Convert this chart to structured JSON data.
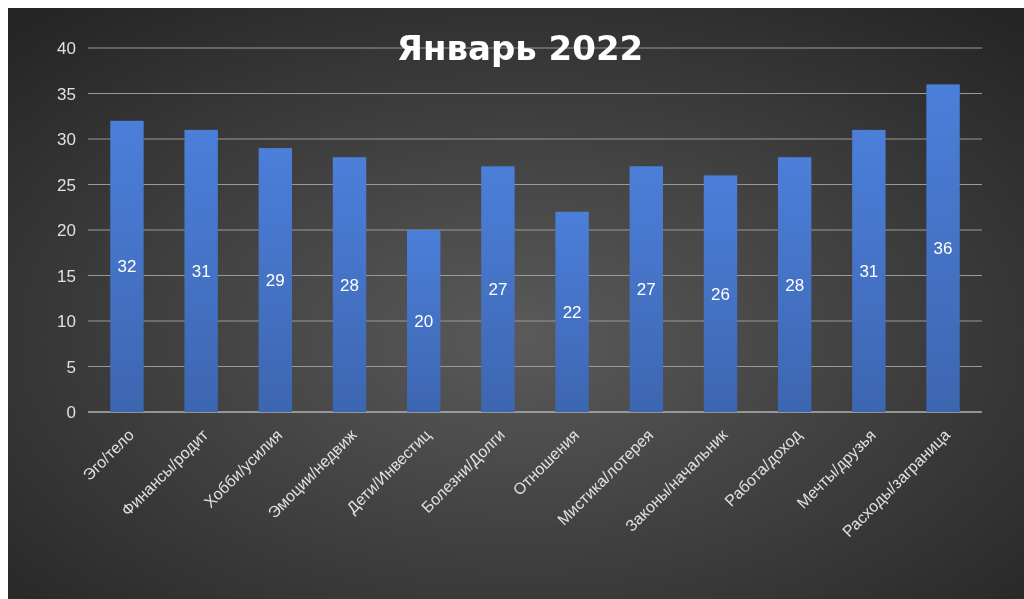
{
  "chart_data": {
    "type": "bar",
    "title": "Январь 2022",
    "categories": [
      "Эго/тело",
      "Финансы/родит",
      "Хобби/усилия",
      "Эмоции/недвиж",
      "Дети/Инвестиц",
      "Болезни/Долги",
      "Отношения",
      "Мистика/лотерея",
      "Законы/начальник",
      "Работа/доход",
      "Мечты/друзья",
      "Расходы/заграница"
    ],
    "values": [
      32,
      31,
      29,
      28,
      20,
      27,
      22,
      27,
      26,
      28,
      31,
      36
    ],
    "color": "#4472c4",
    "ylim": [
      0,
      40
    ],
    "yticks": [
      0,
      5,
      10,
      15,
      20,
      25,
      30,
      35,
      40
    ],
    "grid": "y",
    "data_labels": true
  }
}
